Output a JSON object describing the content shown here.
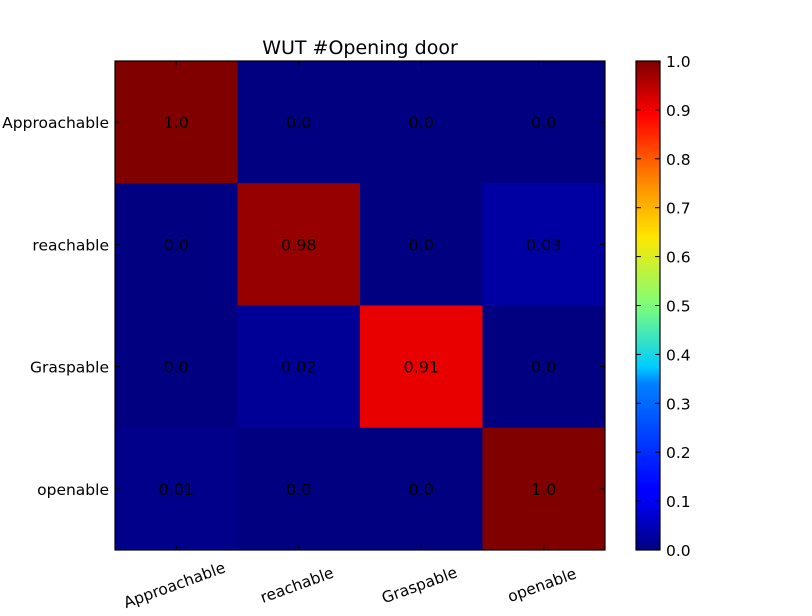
{
  "chart_data": {
    "type": "heatmap",
    "title": "WUT #Opening door",
    "row_labels": [
      "Approachable",
      "reachable",
      "Graspable",
      "openable"
    ],
    "col_labels": [
      "Approachable",
      "reachable",
      "Graspable",
      "openable"
    ],
    "values": [
      [
        1.0,
        0.0,
        0.0,
        0.0
      ],
      [
        0.0,
        0.98,
        0.0,
        0.03
      ],
      [
        0.0,
        0.02,
        0.91,
        0.0
      ],
      [
        0.01,
        0.0,
        0.0,
        1.0
      ]
    ],
    "cell_labels": [
      [
        "1.0",
        "0.0",
        "0.0",
        "0.0"
      ],
      [
        "0.0",
        "0.98",
        "0.0",
        "0.03"
      ],
      [
        "0.0",
        "0.02",
        "0.91",
        "0.0"
      ],
      [
        "0.01",
        "0.0",
        "0.0",
        "1.0"
      ]
    ],
    "colormap": "jet",
    "color_range": [
      0.0,
      1.0
    ],
    "colorbar_ticks": [
      "0.0",
      "0.1",
      "0.2",
      "0.3",
      "0.4",
      "0.5",
      "0.6",
      "0.7",
      "0.8",
      "0.9",
      "1.0"
    ],
    "colorbar_position": "right",
    "grid": false,
    "xlabel": "",
    "ylabel": ""
  }
}
